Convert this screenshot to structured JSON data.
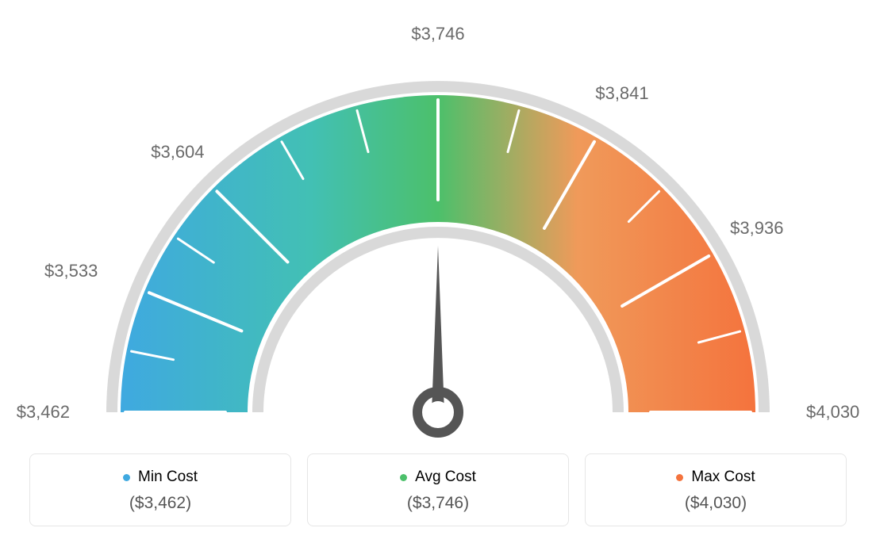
{
  "gauge": {
    "type": "gauge",
    "min_value": 3462,
    "max_value": 4030,
    "avg_value": 3746,
    "current_value": 3746,
    "tick_labels": [
      "$3,462",
      "$3,533",
      "$3,604",
      "$3,746",
      "$3,841",
      "$3,936",
      "$4,030"
    ],
    "tick_angles_deg": [
      180,
      157.5,
      135,
      90,
      60,
      30,
      0
    ],
    "gradient_colors": {
      "blue": "#3fa9e0",
      "teal": "#42c0b4",
      "green": "#4cc06b",
      "orange_light": "#f09a5a",
      "orange": "#f4733d"
    },
    "outer_ring_color": "#d9d9d9",
    "tick_color": "#ffffff",
    "label_color": "#6a6a6a",
    "label_fontsize": 22,
    "needle_color": "#555555",
    "background_color": "#ffffff",
    "outer_radius": 400,
    "inner_radius": 240
  },
  "cards": {
    "min": {
      "label": "Min Cost",
      "value": "($3,462)",
      "color": "#3fa9e0"
    },
    "avg": {
      "label": "Avg Cost",
      "value": "($3,746)",
      "color": "#4cc06b"
    },
    "max": {
      "label": "Max Cost",
      "value": "($4,030)",
      "color": "#f4733d"
    }
  }
}
